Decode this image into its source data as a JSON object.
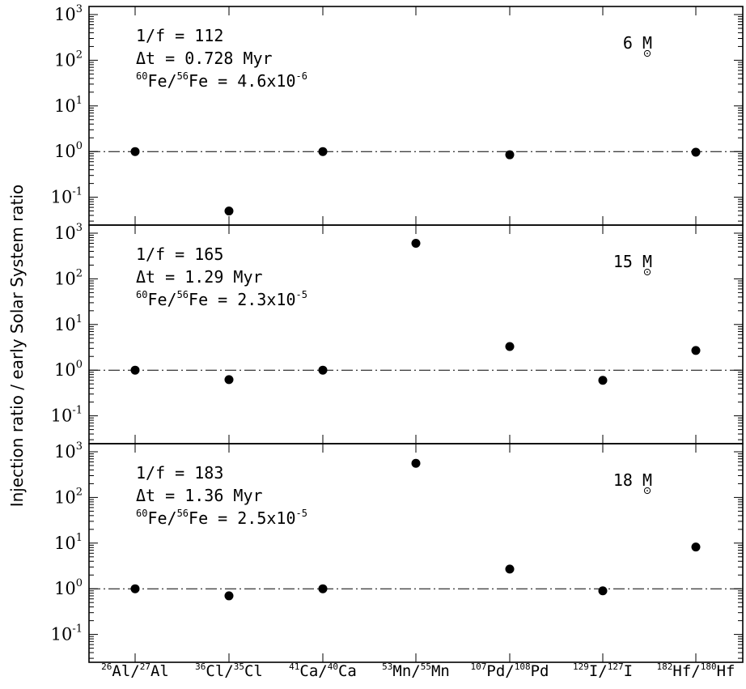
{
  "chart_data": {
    "type": "scatter",
    "ylabel": "Injection ratio / early Solar System ratio",
    "yscale": "log",
    "ylim": [
      0.02,
      1000
    ],
    "reference_line": 1,
    "categories": [
      {
        "sup1": "26",
        "el1": "Al",
        "sup2": "27",
        "el2": "Al"
      },
      {
        "sup1": "36",
        "el1": "Cl",
        "sup2": "35",
        "el2": "Cl"
      },
      {
        "sup1": "41",
        "el1": "Ca",
        "sup2": "40",
        "el2": "Ca"
      },
      {
        "sup1": "53",
        "el1": "Mn",
        "sup2": "55",
        "el2": "Mn"
      },
      {
        "sup1": "107",
        "el1": "Pd",
        "sup2": "108",
        "el2": "Pd"
      },
      {
        "sup1": "129",
        "el1": "I",
        "sup2": "127",
        "el2": "I"
      },
      {
        "sup1": "182",
        "el1": "Hf",
        "sup2": "180",
        "el2": "Hf"
      }
    ],
    "y_ticks": [
      {
        "base": "10",
        "exp": "-1"
      },
      {
        "base": "10",
        "exp": "0"
      },
      {
        "base": "10",
        "exp": "1"
      },
      {
        "base": "10",
        "exp": "2"
      },
      {
        "base": "10",
        "exp": "3"
      }
    ],
    "panels": [
      {
        "mass_value": "6",
        "mass_unit": "M",
        "dilution": "1/f = 112",
        "delta_t": "Δt = 0.728 Myr",
        "fe_ratio": {
          "sup1": "60",
          "sup2": "56",
          "value": "4.6x10",
          "exp": "-6"
        },
        "values": [
          1.0,
          0.05,
          1.0,
          null,
          0.85,
          null,
          0.97
        ]
      },
      {
        "mass_value": "15",
        "mass_unit": "M",
        "dilution": "1/f = 165",
        "delta_t": "Δt = 1.29 Myr",
        "fe_ratio": {
          "sup1": "60",
          "sup2": "56",
          "value": "2.3x10",
          "exp": "-5"
        },
        "values": [
          1.0,
          0.62,
          1.0,
          600,
          3.3,
          0.6,
          2.7
        ]
      },
      {
        "mass_value": "18",
        "mass_unit": "M",
        "dilution": "1/f = 183",
        "delta_t": "Δt = 1.36 Myr",
        "fe_ratio": {
          "sup1": "60",
          "sup2": "56",
          "value": "2.5x10",
          "exp": "-5"
        },
        "values": [
          1.0,
          0.7,
          1.0,
          560,
          2.7,
          0.9,
          8.2
        ]
      }
    ]
  }
}
